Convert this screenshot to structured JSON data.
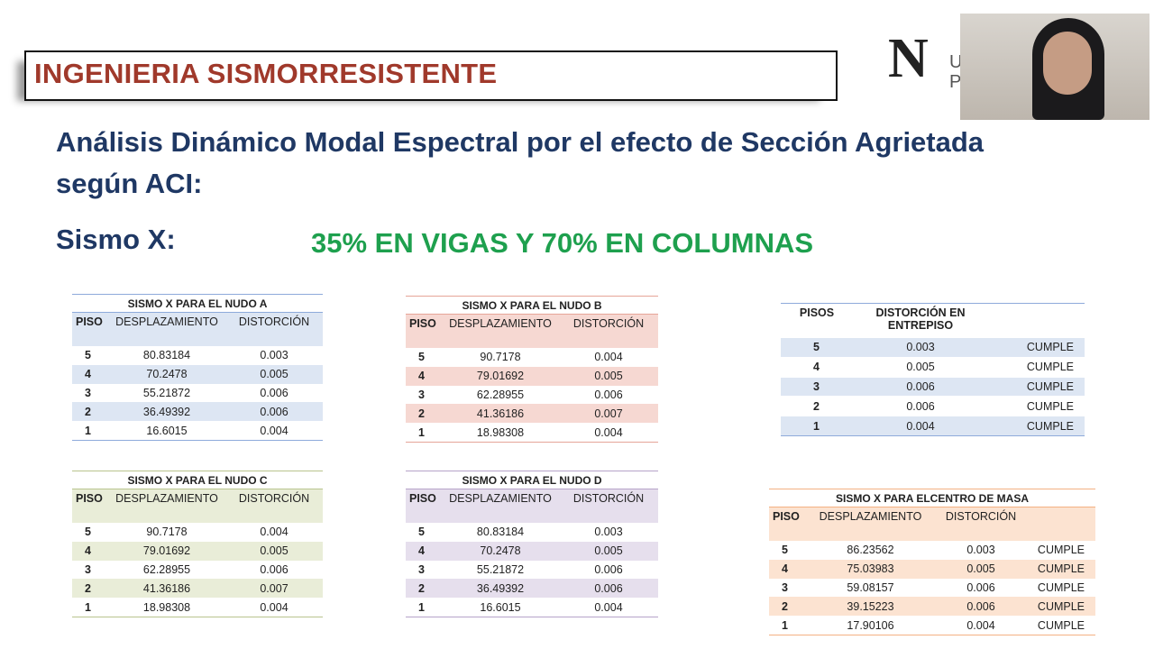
{
  "header": {
    "title": "INGENIERIA SISMORRESISTENTE"
  },
  "logo": {
    "letter": "N",
    "fragments": [
      "U",
      "P"
    ]
  },
  "subtitle": [
    "Análisis Dinámico Modal Espectral por el efecto de Sección Agrietada",
    "según ACI:"
  ],
  "section": "Sismo X:",
  "highlight": "35% EN VIGAS Y 70% EN COLUMNAS",
  "tables": [
    {
      "title": "SISMO X PARA EL NUDO A",
      "headers": [
        "PISO",
        "DESPLAZAMIENTO",
        "DISTORCIÓN"
      ],
      "rows": [
        [
          "5",
          "80.83184",
          "0.003"
        ],
        [
          "4",
          "70.2478",
          "0.005"
        ],
        [
          "3",
          "55.21872",
          "0.006"
        ],
        [
          "2",
          "36.49392",
          "0.006"
        ],
        [
          "1",
          "16.6015",
          "0.004"
        ]
      ]
    },
    {
      "title": "SISMO X PARA EL NUDO B",
      "headers": [
        "PISO",
        "DESPLAZAMIENTO",
        "DISTORCIÓN"
      ],
      "rows": [
        [
          "5",
          "90.7178",
          "0.004"
        ],
        [
          "4",
          "79.01692",
          "0.005"
        ],
        [
          "3",
          "62.28955",
          "0.006"
        ],
        [
          "2",
          "41.36186",
          "0.007"
        ],
        [
          "1",
          "18.98308",
          "0.004"
        ]
      ]
    },
    {
      "headers": [
        "PISOS",
        "DISTORCIÓN EN ENTREPISO"
      ],
      "rows": [
        [
          "5",
          "0.003",
          "CUMPLE"
        ],
        [
          "4",
          "0.005",
          "CUMPLE"
        ],
        [
          "3",
          "0.006",
          "CUMPLE"
        ],
        [
          "2",
          "0.006",
          "CUMPLE"
        ],
        [
          "1",
          "0.004",
          "CUMPLE"
        ]
      ]
    },
    {
      "title": "SISMO X PARA EL NUDO C",
      "headers": [
        "PISO",
        "DESPLAZAMIENTO",
        "DISTORCIÓN"
      ],
      "rows": [
        [
          "5",
          "90.7178",
          "0.004"
        ],
        [
          "4",
          "79.01692",
          "0.005"
        ],
        [
          "3",
          "62.28955",
          "0.006"
        ],
        [
          "2",
          "41.36186",
          "0.007"
        ],
        [
          "1",
          "18.98308",
          "0.004"
        ]
      ]
    },
    {
      "title": "SISMO X PARA EL NUDO D",
      "headers": [
        "PISO",
        "DESPLAZAMIENTO",
        "DISTORCIÓN"
      ],
      "rows": [
        [
          "5",
          "80.83184",
          "0.003"
        ],
        [
          "4",
          "70.2478",
          "0.005"
        ],
        [
          "3",
          "55.21872",
          "0.006"
        ],
        [
          "2",
          "36.49392",
          "0.006"
        ],
        [
          "1",
          "16.6015",
          "0.004"
        ]
      ]
    },
    {
      "title": "SISMO X PARA ELCENTRO DE MASA",
      "headers": [
        "PISO",
        "DESPLAZAMIENTO",
        "DISTORCIÓN"
      ],
      "rows": [
        [
          "5",
          "86.23562",
          "0.003",
          "CUMPLE"
        ],
        [
          "4",
          "75.03983",
          "0.005",
          "CUMPLE"
        ],
        [
          "3",
          "59.08157",
          "0.006",
          "CUMPLE"
        ],
        [
          "2",
          "39.15223",
          "0.006",
          "CUMPLE"
        ],
        [
          "1",
          "17.90106",
          "0.004",
          "CUMPLE"
        ]
      ]
    }
  ]
}
